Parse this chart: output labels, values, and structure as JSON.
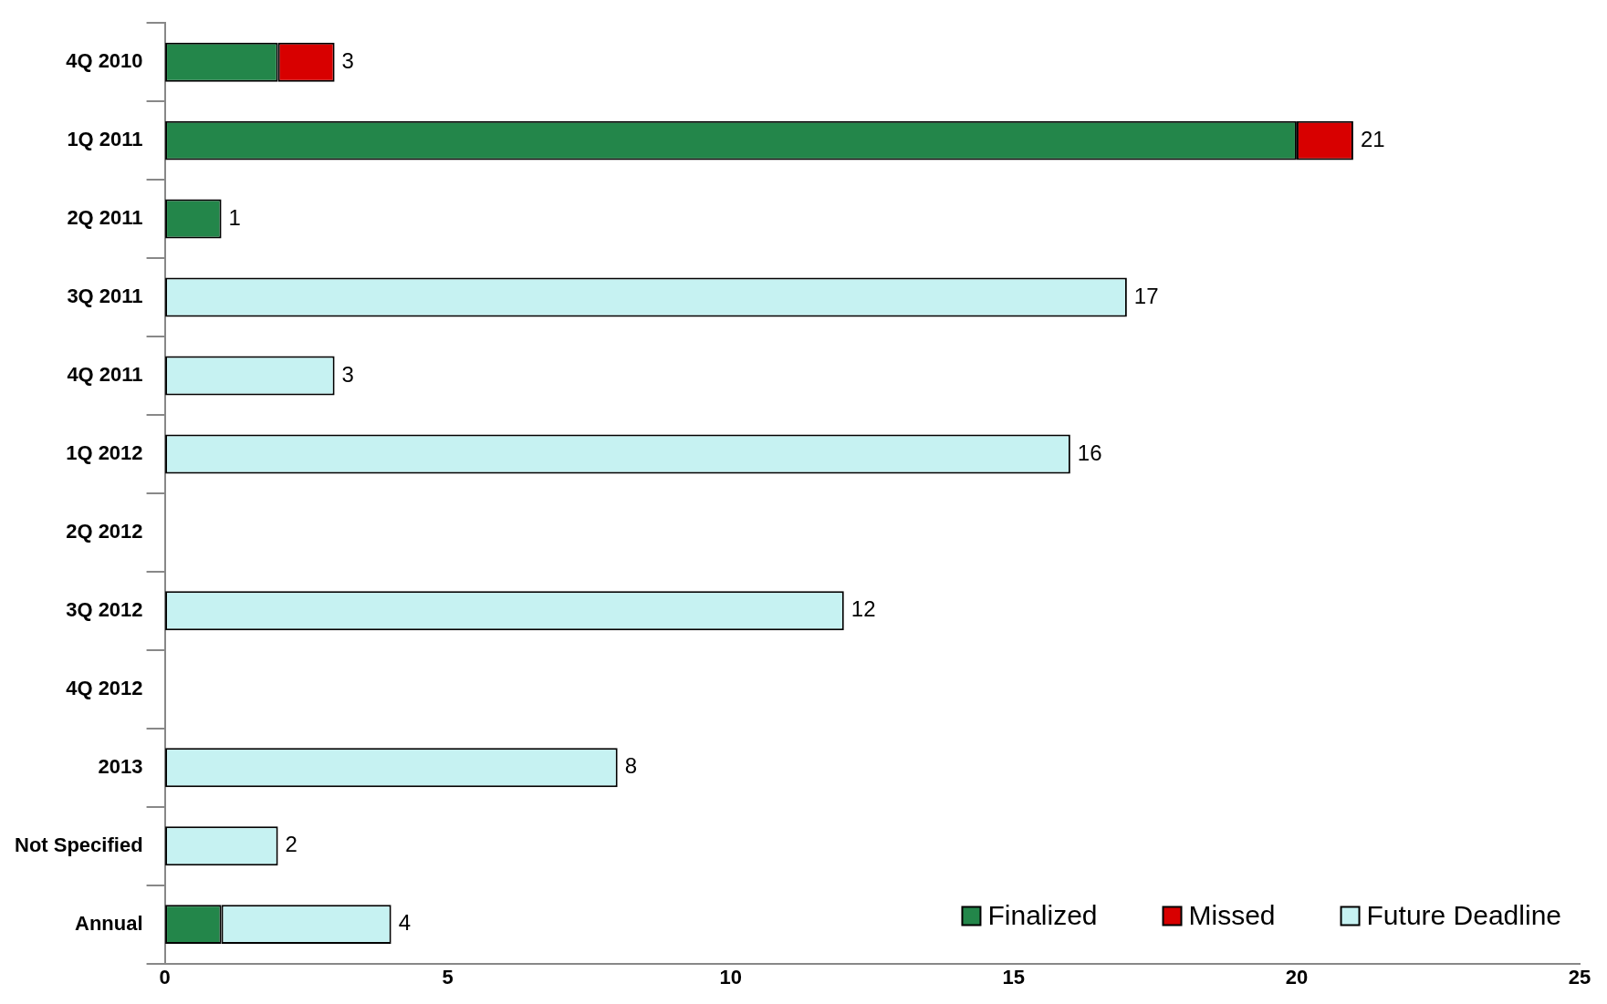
{
  "chart_data": {
    "type": "bar",
    "orientation": "horizontal",
    "stacked": true,
    "categories": [
      "4Q 2010",
      "1Q 2011",
      "2Q 2011",
      "3Q 2011",
      "4Q 2011",
      "1Q 2012",
      "2Q 2012",
      "3Q 2012",
      "4Q 2012",
      "2013",
      "Not Specified",
      "Annual"
    ],
    "series": [
      {
        "name": "Finalized",
        "color": "#23864a",
        "values": [
          2,
          20,
          1,
          0,
          0,
          0,
          0,
          0,
          0,
          0,
          0,
          1
        ]
      },
      {
        "name": "Missed",
        "color": "#d80000",
        "values": [
          1,
          1,
          0,
          0,
          0,
          0,
          0,
          0,
          0,
          0,
          0,
          0
        ]
      },
      {
        "name": "Future Deadline",
        "color": "#c6f2f2",
        "values": [
          0,
          0,
          0,
          17,
          3,
          16,
          0,
          12,
          0,
          8,
          2,
          3
        ]
      }
    ],
    "totals": [
      "3",
      "21",
      "1",
      "17",
      "3",
      "16",
      null,
      "12",
      null,
      "8",
      "2",
      "4"
    ],
    "xlim": [
      0,
      25
    ],
    "xticks": [
      0,
      5,
      10,
      15,
      20,
      25
    ],
    "grid": false,
    "legend": "bottom right"
  }
}
